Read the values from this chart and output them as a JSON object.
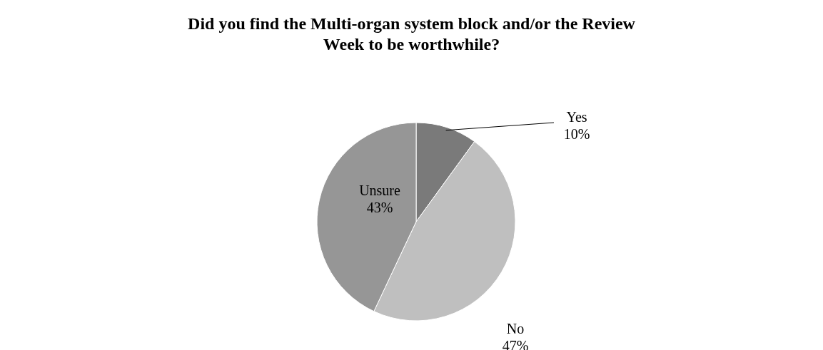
{
  "chart_data": {
    "type": "pie",
    "title": [
      "Did you find the Multi-organ system block and/or the Review",
      "Week to be worthwhile?"
    ],
    "categories": [
      "Yes",
      "No",
      "Unsure"
    ],
    "values": [
      10,
      47,
      43
    ],
    "value_labels": [
      "10%",
      "47%",
      "43%"
    ],
    "colors": [
      "#7a7a7a",
      "#bfbfbf",
      "#969696"
    ]
  }
}
